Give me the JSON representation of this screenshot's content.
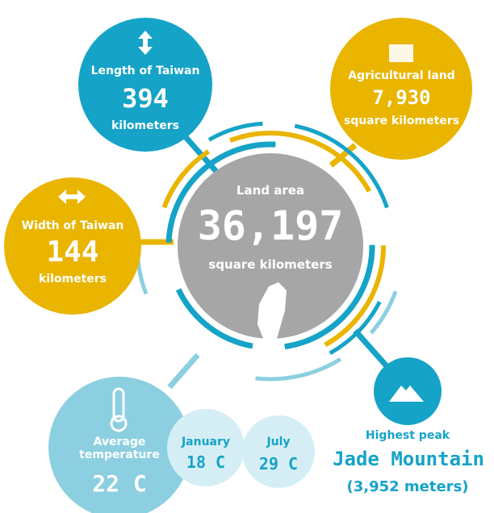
{
  "center": {
    "label": "Land area",
    "value": "36,197",
    "unit": "square kilometers"
  },
  "length": {
    "label": "Length of Taiwan",
    "value": "394",
    "unit": "kilometers"
  },
  "agriculture": {
    "label": "Agricultural land",
    "value": "7,930",
    "unit": "square kilometers"
  },
  "width": {
    "label": "Width of Taiwan",
    "value": "144",
    "unit": "kilometers"
  },
  "temperature": {
    "label": "Average temperature",
    "value": "22 C",
    "months": [
      {
        "label": "January",
        "value": "18 C"
      },
      {
        "label": "July",
        "value": "29 C"
      }
    ]
  },
  "peak": {
    "label": "Highest peak",
    "name": "Jade Mountain",
    "height": "(3,952 meters)"
  }
}
